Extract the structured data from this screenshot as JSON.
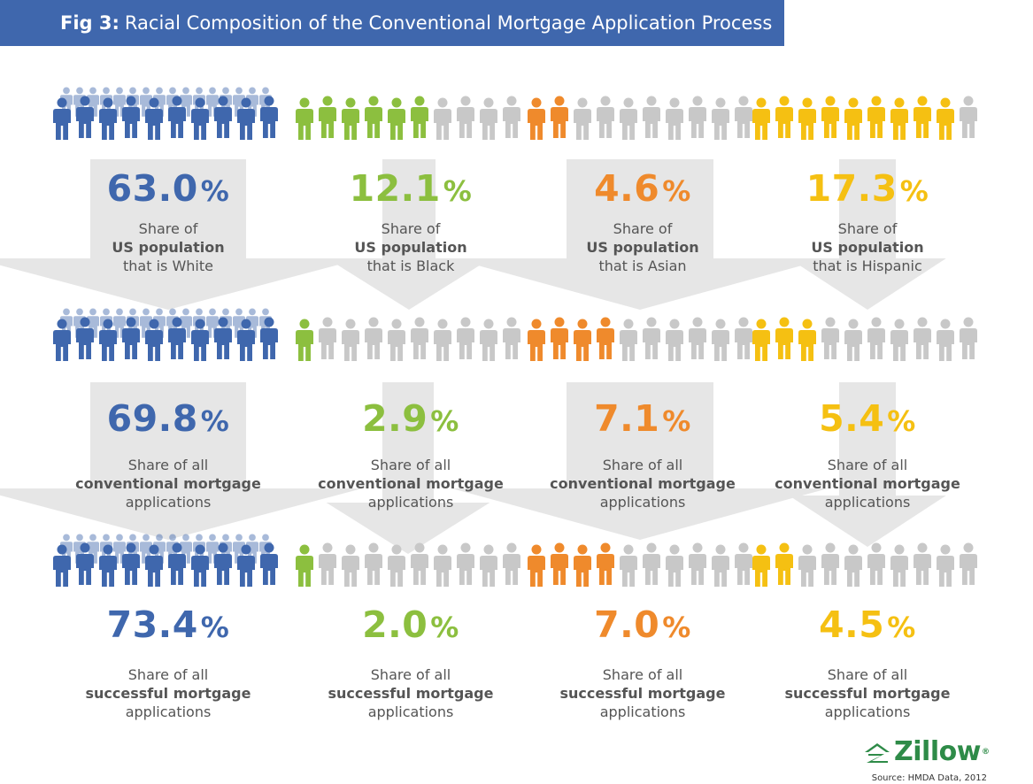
{
  "title": {
    "fig": "Fig 3:",
    "text": "Racial Composition of the Conventional Mortgage Application Process"
  },
  "chart_data": {
    "type": "pictogram",
    "categories": [
      "White",
      "Black",
      "Asian",
      "Hispanic"
    ],
    "colors": {
      "White": "#3f67ad",
      "Black": "#8cbf3f",
      "Asian": "#ef8a2c",
      "Hispanic": "#f5c012",
      "inactive": "#c8c8c8"
    },
    "stages": [
      {
        "values": [
          63.0,
          12.1,
          4.6,
          17.3
        ],
        "labels": [
          "63.0",
          "12.1",
          "4.6",
          "17.3"
        ],
        "caption_line1": [
          "Share of",
          "Share of",
          "Share of",
          "Share of"
        ],
        "caption_line2": [
          "US population",
          "US population",
          "US population",
          "US population"
        ],
        "caption_line3": [
          "that is White",
          "that is Black",
          "that is Asian",
          "that is Hispanic"
        ]
      },
      {
        "values": [
          69.8,
          2.9,
          7.1,
          5.4
        ],
        "labels": [
          "69.8",
          "2.9",
          "7.1",
          "5.4"
        ],
        "caption_line1": [
          "Share of all",
          "Share of all",
          "Share of all",
          "Share of all"
        ],
        "caption_line2": [
          "conventional mortgage",
          "conventional mortgage",
          "conventional mortgage",
          "conventional mortgage"
        ],
        "caption_line3": [
          "applications",
          "applications",
          "applications",
          "applications"
        ]
      },
      {
        "values": [
          73.4,
          2.0,
          7.0,
          4.5
        ],
        "labels": [
          "73.4",
          "2.0",
          "7.0",
          "4.5"
        ],
        "caption_line1": [
          "Share of all",
          "Share of all",
          "Share of all",
          "Share of all"
        ],
        "caption_line2": [
          "successful mortgage",
          "successful mortgage",
          "successful mortgage",
          "successful mortgage"
        ],
        "caption_line3": [
          "applications",
          "applications",
          "applications",
          "applications"
        ]
      }
    ],
    "unit": "%"
  },
  "brand": {
    "name": "Zillow",
    "mark": "®"
  },
  "source": "Source: HMDA Data, 2012"
}
